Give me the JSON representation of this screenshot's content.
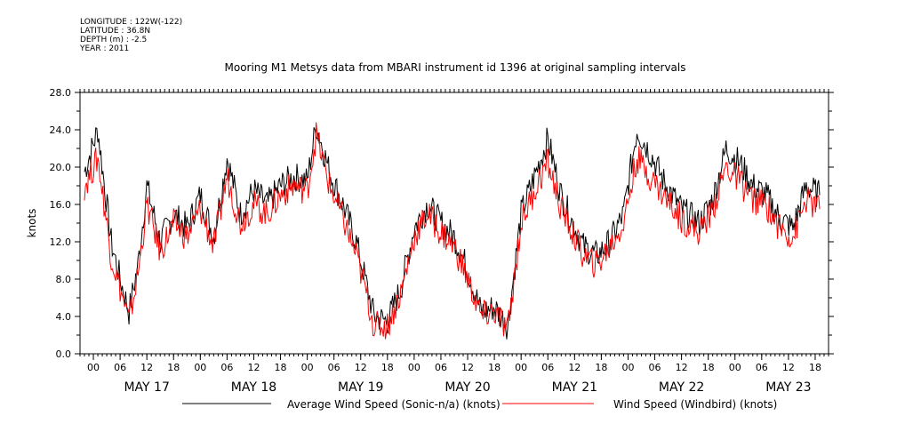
{
  "header": {
    "longitude": "LONGITUDE : 122W(-122)",
    "latitude": "LATITUDE : 36.8N",
    "depth": "DEPTH (m) : -2.5",
    "year": "YEAR : 2011"
  },
  "chart_data": {
    "type": "line",
    "title": "Mooring M1 Metsys data from MBARI instrument id 1396 at original sampling intervals",
    "ylabel": "knots",
    "xlabel": "",
    "ylim": [
      0,
      28
    ],
    "yticks": [
      "0.0",
      "4.0",
      "8.0",
      "12.0",
      "16.0",
      "20.0",
      "24.0",
      "28.0"
    ],
    "xlim_hours_label": "2011-05-16 21:00 to 2011-05-23 21:00",
    "hour_tick_labels": [
      "00",
      "06",
      "12",
      "18"
    ],
    "day_labels": [
      "MAY 17",
      "MAY 18",
      "MAY 19",
      "MAY 20",
      "MAY 21",
      "MAY 22",
      "MAY 23"
    ],
    "legend_placement": "bottom",
    "series": [
      {
        "name": "Average Wind Speed (Sonic-n/a) (knots)",
        "color": "#000000",
        "x": [
          "2011-05-16 22:00",
          "2011-05-17 01:00",
          "2011-05-17 04:00",
          "2011-05-17 06:00",
          "2011-05-17 08:00",
          "2011-05-17 10:00",
          "2011-05-17 12:00",
          "2011-05-17 15:00",
          "2011-05-17 18:00",
          "2011-05-17 21:00",
          "2011-05-18 00:00",
          "2011-05-18 03:00",
          "2011-05-18 06:00",
          "2011-05-18 09:00",
          "2011-05-18 12:00",
          "2011-05-18 15:00",
          "2011-05-18 18:00",
          "2011-05-18 21:00",
          "2011-05-19 00:00",
          "2011-05-19 02:00",
          "2011-05-19 05:00",
          "2011-05-19 08:00",
          "2011-05-19 11:00",
          "2011-05-19 13:00",
          "2011-05-19 15:00",
          "2011-05-19 18:00",
          "2011-05-19 21:00",
          "2011-05-20 00:00",
          "2011-05-20 03:00",
          "2011-05-20 06:00",
          "2011-05-20 09:00",
          "2011-05-20 12:00",
          "2011-05-20 15:00",
          "2011-05-20 18:00",
          "2011-05-20 21:00",
          "2011-05-21 00:00",
          "2011-05-21 03:00",
          "2011-05-21 06:00",
          "2011-05-21 09:00",
          "2011-05-21 12:00",
          "2011-05-21 14:00",
          "2011-05-21 17:00",
          "2011-05-21 20:00",
          "2011-05-21 23:00",
          "2011-05-22 02:00",
          "2011-05-22 05:00",
          "2011-05-22 08:00",
          "2011-05-22 12:00",
          "2011-05-22 16:00",
          "2011-05-22 19:00",
          "2011-05-22 22:00",
          "2011-05-23 01:00",
          "2011-05-23 04:00",
          "2011-05-23 07:00",
          "2011-05-23 10:00",
          "2011-05-23 13:00",
          "2011-05-23 16:00",
          "2011-05-23 19:00"
        ],
        "values": [
          19.5,
          24.0,
          12.0,
          8.0,
          4.5,
          9.5,
          18.0,
          12.0,
          15.0,
          13.5,
          17.0,
          12.5,
          21.0,
          15.0,
          17.5,
          16.0,
          18.0,
          19.0,
          18.5,
          24.5,
          19.5,
          16.0,
          12.0,
          8.0,
          4.0,
          3.5,
          7.0,
          13.5,
          16.0,
          14.0,
          12.5,
          9.0,
          4.5,
          5.0,
          3.0,
          15.0,
          19.0,
          23.0,
          17.0,
          13.5,
          11.5,
          10.5,
          12.0,
          15.0,
          24.0,
          21.5,
          18.5,
          15.5,
          14.0,
          16.5,
          22.0,
          20.5,
          18.0,
          17.0,
          14.5,
          13.5,
          18.0,
          17.0
        ]
      },
      {
        "name": "Wind Speed (Windbird) (knots)",
        "color": "#ff0000",
        "x": [
          "2011-05-16 22:00",
          "2011-05-17 01:00",
          "2011-05-17 04:00",
          "2011-05-17 06:00",
          "2011-05-17 08:00",
          "2011-05-17 10:00",
          "2011-05-17 12:00",
          "2011-05-17 15:00",
          "2011-05-17 18:00",
          "2011-05-17 21:00",
          "2011-05-18 00:00",
          "2011-05-18 03:00",
          "2011-05-18 06:00",
          "2011-05-18 09:00",
          "2011-05-18 12:00",
          "2011-05-18 15:00",
          "2011-05-18 18:00",
          "2011-05-18 21:00",
          "2011-05-19 00:00",
          "2011-05-19 02:00",
          "2011-05-19 05:00",
          "2011-05-19 08:00",
          "2011-05-19 11:00",
          "2011-05-19 13:00",
          "2011-05-19 15:00",
          "2011-05-19 18:00",
          "2011-05-19 21:00",
          "2011-05-20 00:00",
          "2011-05-20 03:00",
          "2011-05-20 06:00",
          "2011-05-20 09:00",
          "2011-05-20 12:00",
          "2011-05-20 15:00",
          "2011-05-20 18:00",
          "2011-05-20 21:00",
          "2011-05-21 00:00",
          "2011-05-21 03:00",
          "2011-05-21 06:00",
          "2011-05-21 09:00",
          "2011-05-21 12:00",
          "2011-05-21 14:00",
          "2011-05-21 17:00",
          "2011-05-21 20:00",
          "2011-05-21 23:00",
          "2011-05-22 02:00",
          "2011-05-22 05:00",
          "2011-05-22 08:00",
          "2011-05-22 12:00",
          "2011-05-22 16:00",
          "2011-05-22 19:00",
          "2011-05-22 22:00",
          "2011-05-23 01:00",
          "2011-05-23 04:00",
          "2011-05-23 07:00",
          "2011-05-23 10:00",
          "2011-05-23 13:00",
          "2011-05-23 16:00",
          "2011-05-23 19:00"
        ],
        "values": [
          18.0,
          21.0,
          10.5,
          7.0,
          3.5,
          8.5,
          16.0,
          11.0,
          14.0,
          12.5,
          15.5,
          11.5,
          19.0,
          14.0,
          16.0,
          15.0,
          17.0,
          18.0,
          17.5,
          23.5,
          18.0,
          14.5,
          10.5,
          7.0,
          3.0,
          3.0,
          6.5,
          12.5,
          15.0,
          13.0,
          11.5,
          8.0,
          4.0,
          4.5,
          2.5,
          14.0,
          17.5,
          20.5,
          15.5,
          12.5,
          10.5,
          9.5,
          11.5,
          14.0,
          21.0,
          19.0,
          17.0,
          14.5,
          13.0,
          15.5,
          20.0,
          18.5,
          16.5,
          16.0,
          13.5,
          12.5,
          16.5,
          15.5
        ]
      }
    ]
  }
}
